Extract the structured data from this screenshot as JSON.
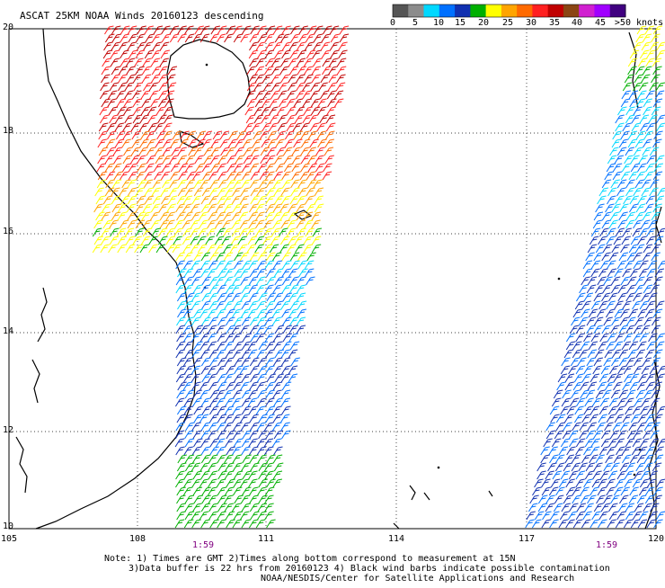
{
  "title": "ASCAT 25KM NOAA Winds 20160123 descending",
  "colorbar": {
    "labels": [
      "0",
      "5",
      "10",
      "15",
      "20",
      "25",
      "30",
      "35",
      "40",
      "45",
      ">50 knots"
    ],
    "colors": [
      "#555555",
      "#8c8c8c",
      "#00d8ff",
      "#0070ff",
      "#1030b0",
      "#00b000",
      "#ffff00",
      "#ffa500",
      "#ff6a00",
      "#ff2020",
      "#c00000",
      "#8b4513",
      "#d020d0",
      "#a000ff",
      "#400080"
    ]
  },
  "axes": {
    "lat_labels": [
      "20",
      "18",
      "16",
      "14",
      "12",
      "10"
    ],
    "lon_labels": [
      "105",
      "108",
      "111",
      "114",
      "117",
      "120"
    ],
    "lat_range": [
      10,
      20
    ],
    "lon_range": [
      105,
      120
    ],
    "grid": "dotted"
  },
  "pass_times": [
    "1:59",
    "1:59"
  ],
  "notes": [
    "Note: 1) Times are GMT 2)Times along bottom correspond to measurement at 15N",
    "3)Data buffer is 22 hrs from 20160123 4) Black wind barbs indicate possible contamination",
    "NOAA/NESDIS/Center for Satellite Applications and Research"
  ]
}
